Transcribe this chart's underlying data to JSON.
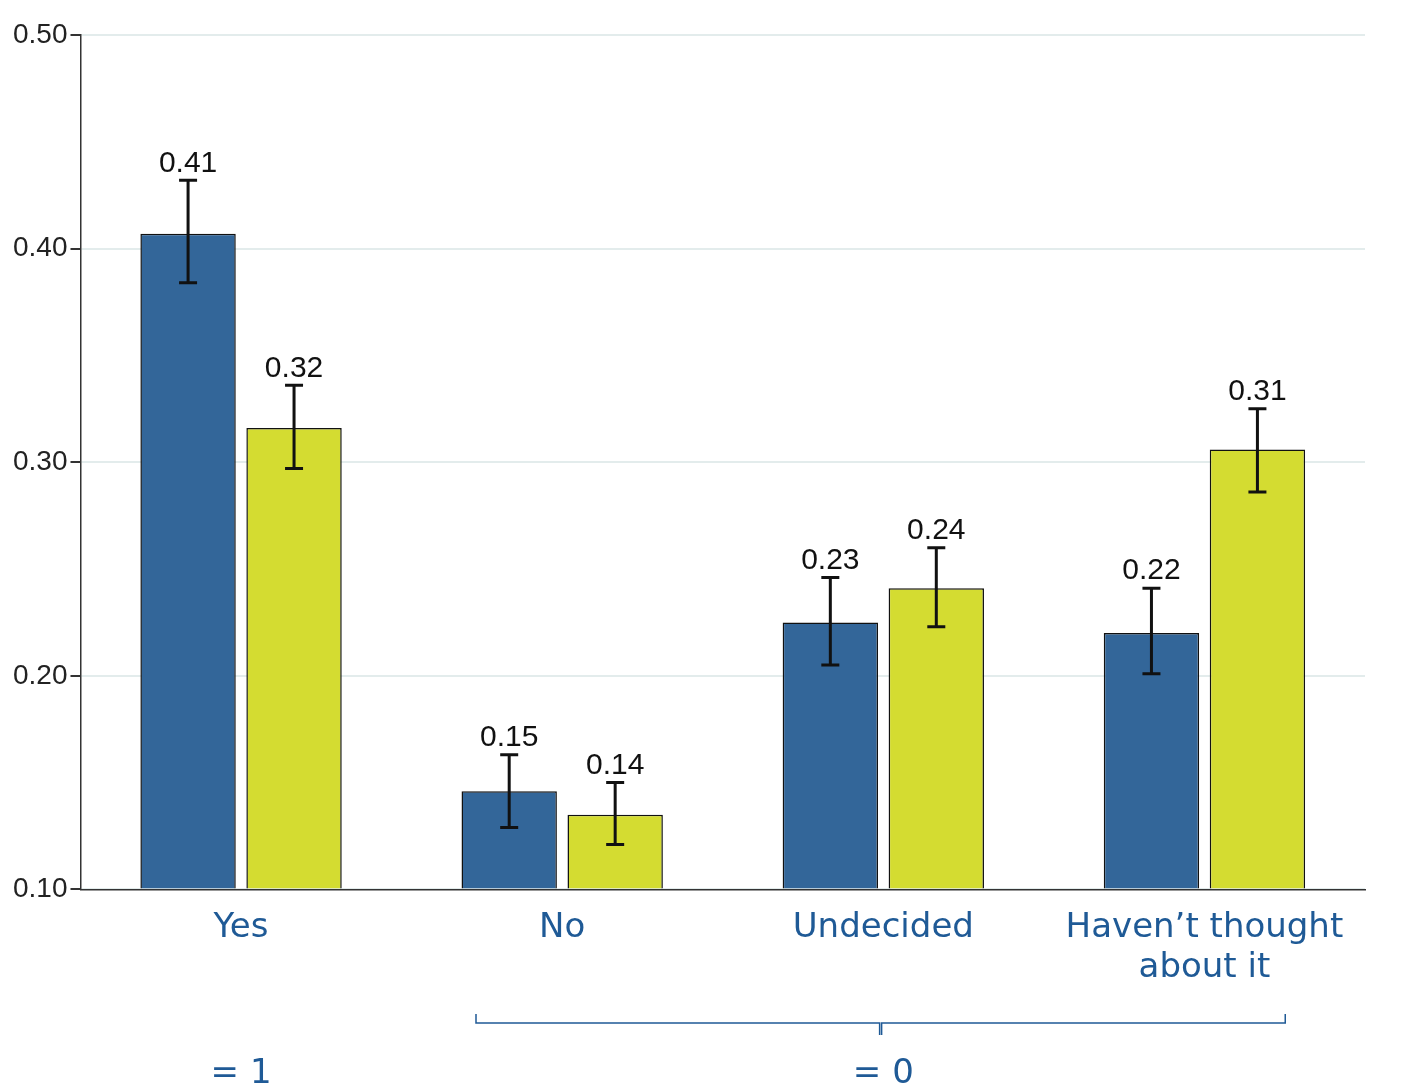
{
  "chart_data": {
    "type": "bar",
    "categories": [
      "Yes",
      "No",
      "Undecided",
      "Haven’t thought about it"
    ],
    "series": [
      {
        "color": "#336699",
        "values": [
          0.407,
          0.146,
          0.225,
          0.22
        ],
        "errors": [
          [
            0.384,
            0.432
          ],
          [
            0.129,
            0.163
          ],
          [
            0.205,
            0.246
          ],
          [
            0.201,
            0.241
          ]
        ],
        "value_labels": [
          "0.41",
          "0.15",
          "0.23",
          "0.22"
        ]
      },
      {
        "color": "#d4dc31",
        "values": [
          0.316,
          0.135,
          0.241,
          0.306
        ],
        "errors": [
          [
            0.297,
            0.336
          ],
          [
            0.121,
            0.15
          ],
          [
            0.223,
            0.26
          ],
          [
            0.286,
            0.325
          ]
        ],
        "value_labels": [
          "0.32",
          "0.14",
          "0.24",
          "0.31"
        ]
      }
    ],
    "ylim": [
      0.1,
      0.5
    ],
    "yticks": [
      {
        "value": 0.1,
        "label": "0.10"
      },
      {
        "value": 0.2,
        "label": "0.20"
      },
      {
        "value": 0.3,
        "label": "0.30"
      },
      {
        "value": 0.4,
        "label": "0.40"
      },
      {
        "value": 0.5,
        "label": "0.50"
      }
    ],
    "grid": "y",
    "legend": false,
    "annotations": [
      "= 1",
      "= 0"
    ]
  }
}
